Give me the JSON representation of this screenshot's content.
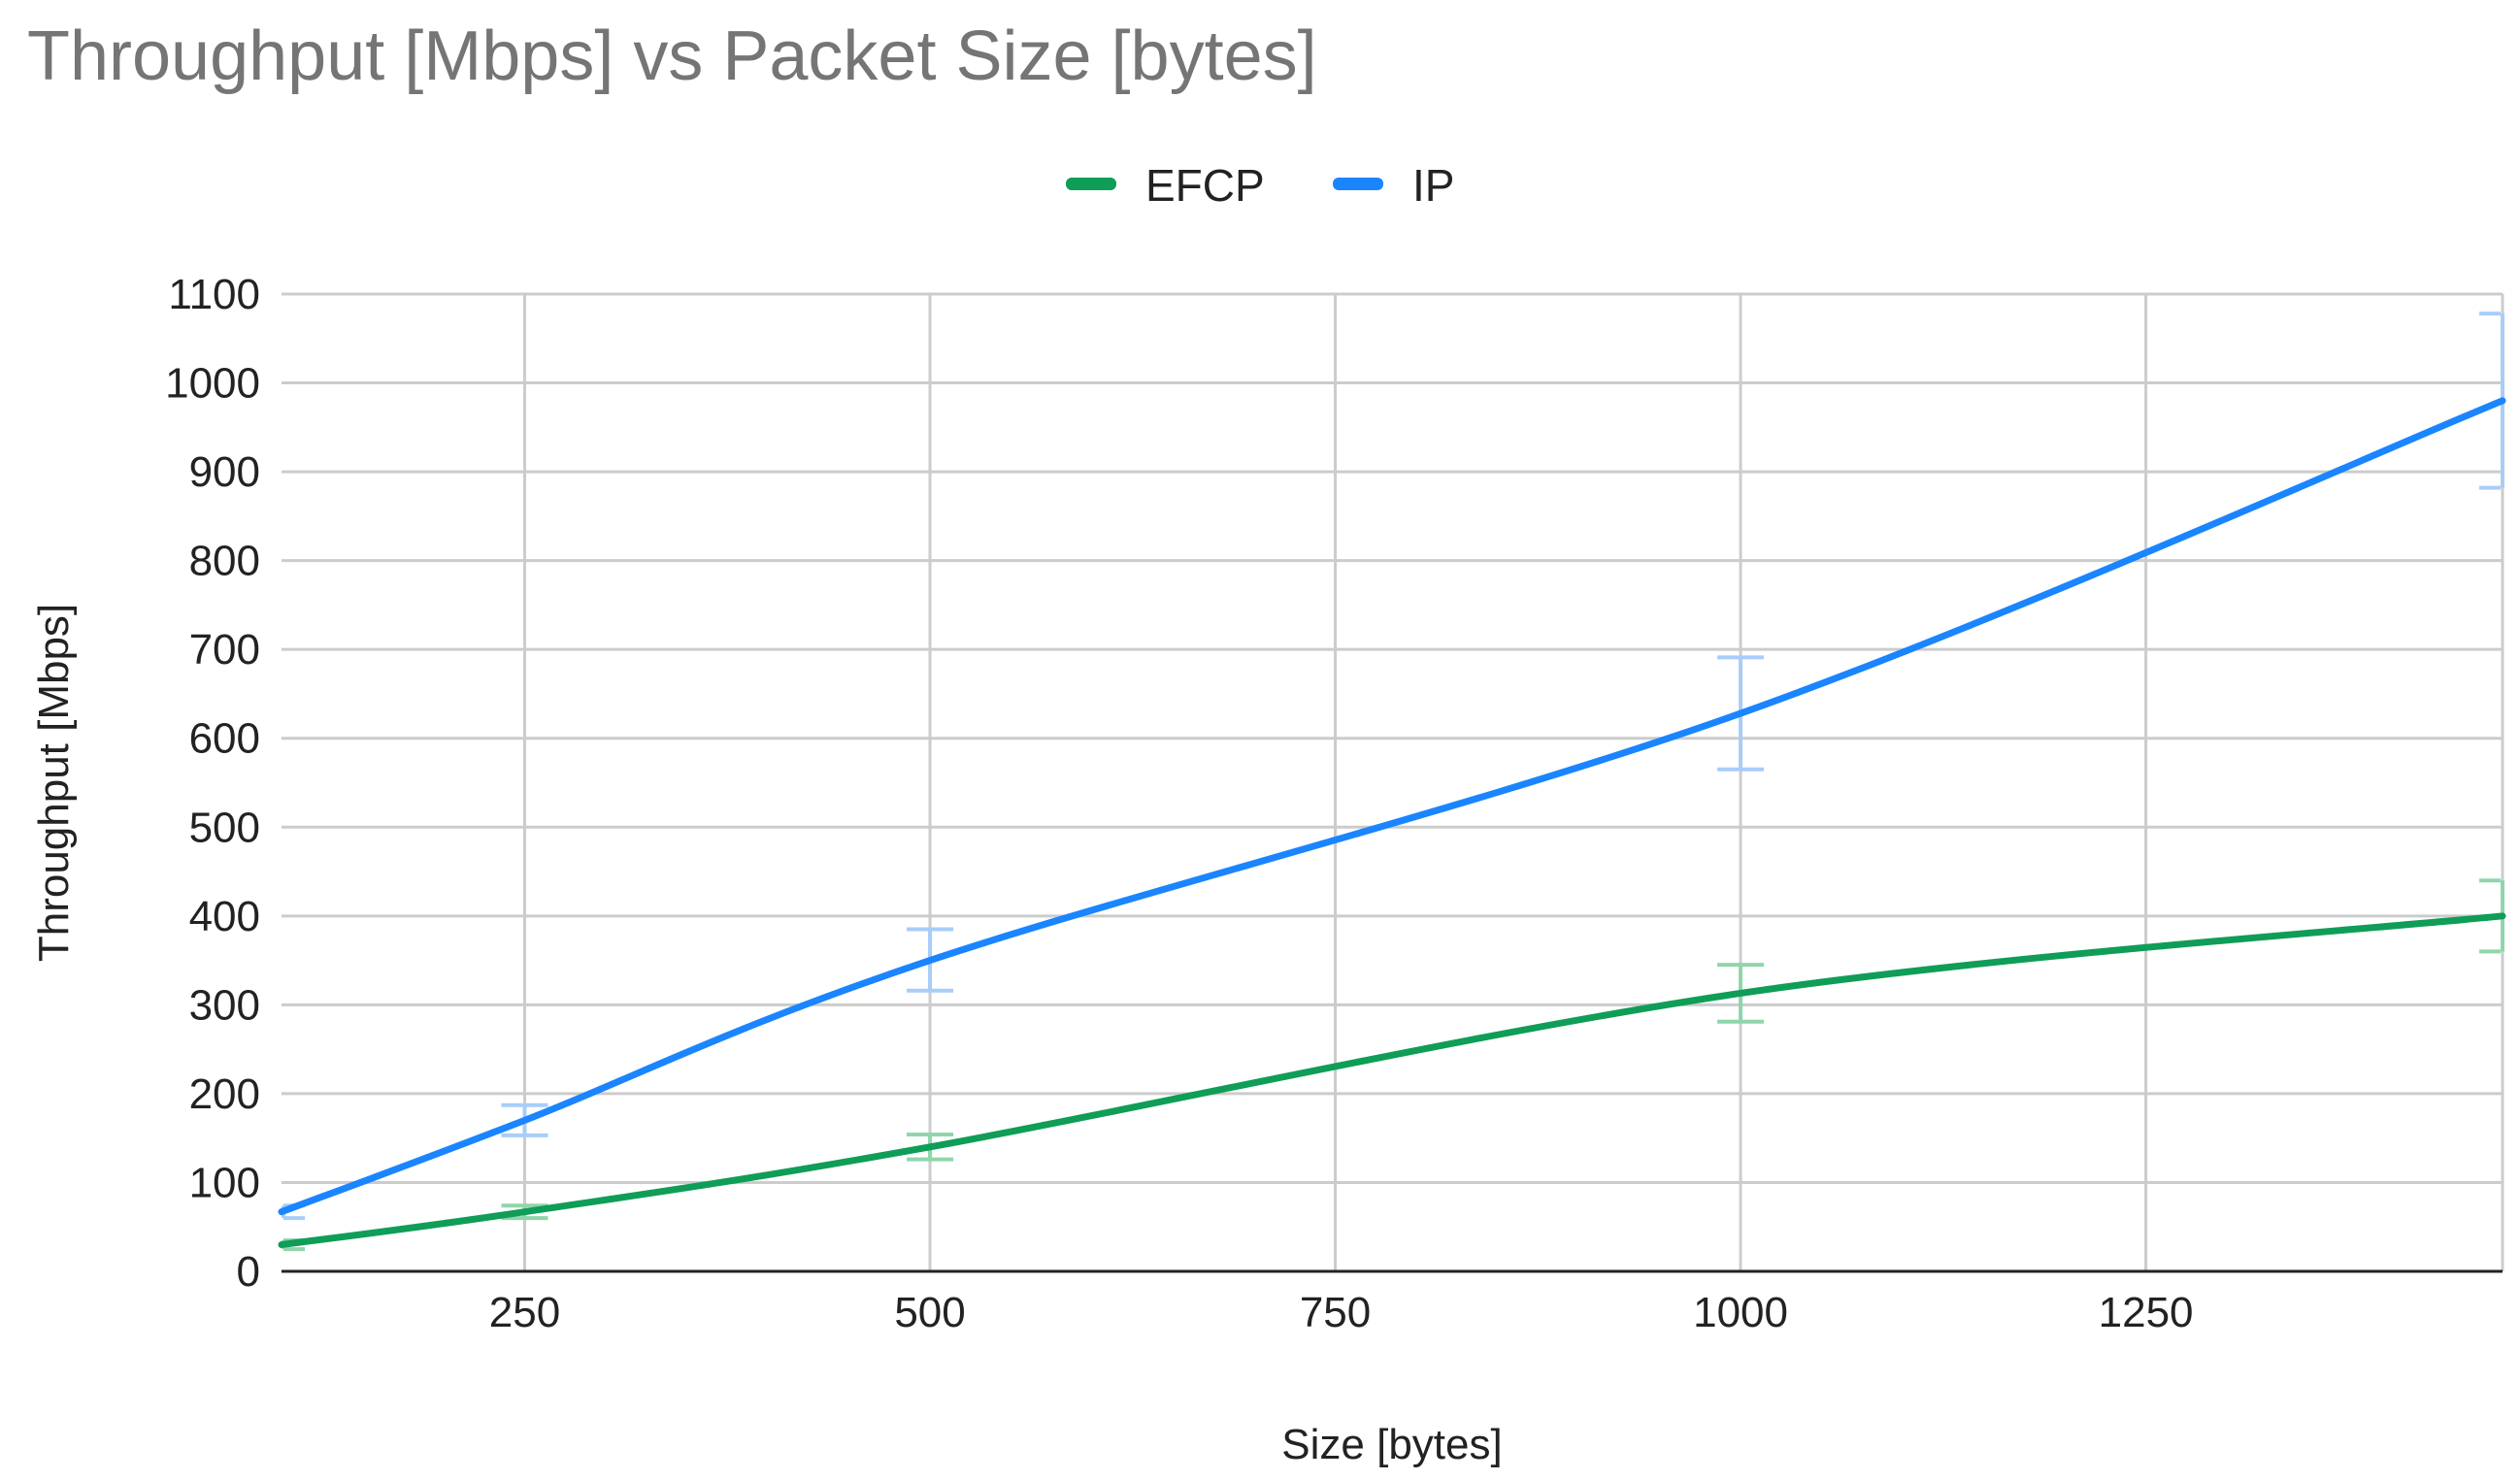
{
  "colors": {
    "title": "#757575",
    "gridline": "#cccccc",
    "axis": "#222222"
  },
  "chart_data": {
    "type": "line",
    "title": "Throughput [Mbps] vs Packet Size [bytes]",
    "xlabel": "Size [bytes]",
    "ylabel": "Throughput [Mbps]",
    "xlim": [
      100,
      1470
    ],
    "ylim": [
      0,
      1100
    ],
    "xticks": [
      250,
      500,
      750,
      1000,
      1250
    ],
    "yticks": [
      0,
      100,
      200,
      300,
      400,
      500,
      600,
      700,
      800,
      900,
      1000,
      1100
    ],
    "grid": true,
    "legend": "top",
    "smooth": true,
    "x": [
      100,
      250,
      500,
      1000,
      1470
    ],
    "series": [
      {
        "name": "EFCP",
        "color": "#0f9d58",
        "errorbar_color": "#8fd6aa",
        "values": [
          30,
          67,
          140,
          313,
          400
        ],
        "error_low": [
          25,
          60,
          126,
          281,
          360
        ],
        "error_high": [
          35,
          74,
          154,
          345,
          440
        ]
      },
      {
        "name": "IP",
        "color": "#1a85ff",
        "errorbar_color": "#a8cdf9",
        "values": [
          67,
          170,
          350,
          628,
          980
        ],
        "error_low": [
          60,
          153,
          316,
          565,
          882
        ],
        "error_high": [
          74,
          187,
          385,
          691,
          1078
        ]
      }
    ]
  }
}
